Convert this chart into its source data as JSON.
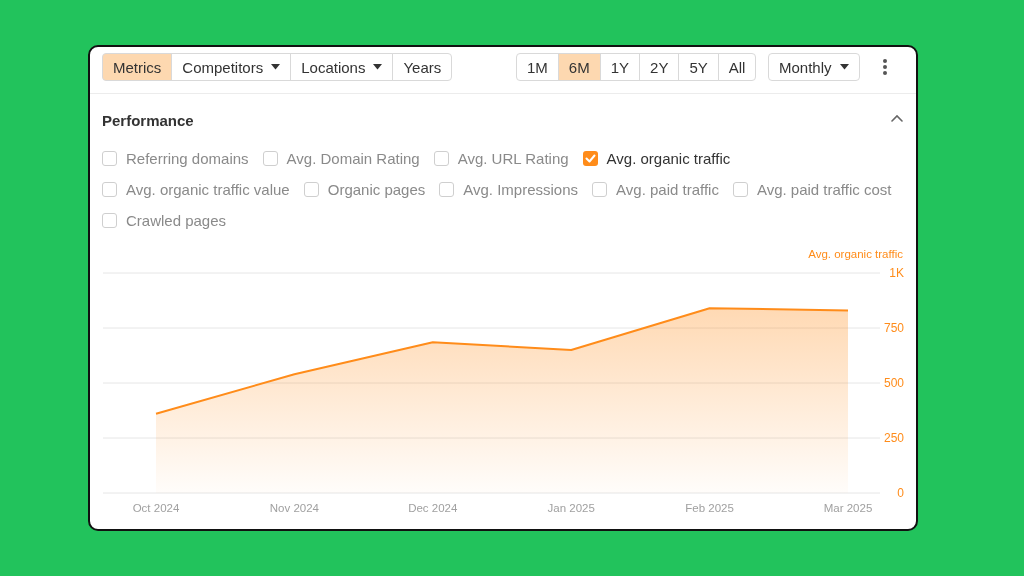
{
  "chart_data": {
    "type": "area",
    "title": "Performance",
    "ylabel": "Avg. organic traffic",
    "categories": [
      "Oct 2024",
      "Nov 2024",
      "Dec 2024",
      "Jan 2025",
      "Feb 2025",
      "Mar 2025"
    ],
    "series": [
      {
        "name": "Avg. organic traffic",
        "color": "#ff8c1a",
        "values": [
          360,
          540,
          685,
          650,
          840,
          830
        ]
      }
    ],
    "ylim": [
      0,
      1000
    ],
    "yticks": [
      0,
      250,
      500,
      750,
      {
        "value": 1000,
        "label": "1K"
      }
    ],
    "grid": "y",
    "legend": "top",
    "annotations": [
      "Metrics",
      "Competitors",
      "Locations",
      "Years",
      "1M",
      "6M",
      "1Y",
      "2Y",
      "5Y",
      "All",
      "Monthly",
      "Referring domains",
      "Avg. Domain Rating",
      "Avg. URL Rating",
      "Avg. organic traffic value",
      "Organic pages",
      "Avg. Impressions",
      "Avg. paid traffic",
      "Avg. paid traffic cost",
      "Crawled pages"
    ]
  }
}
